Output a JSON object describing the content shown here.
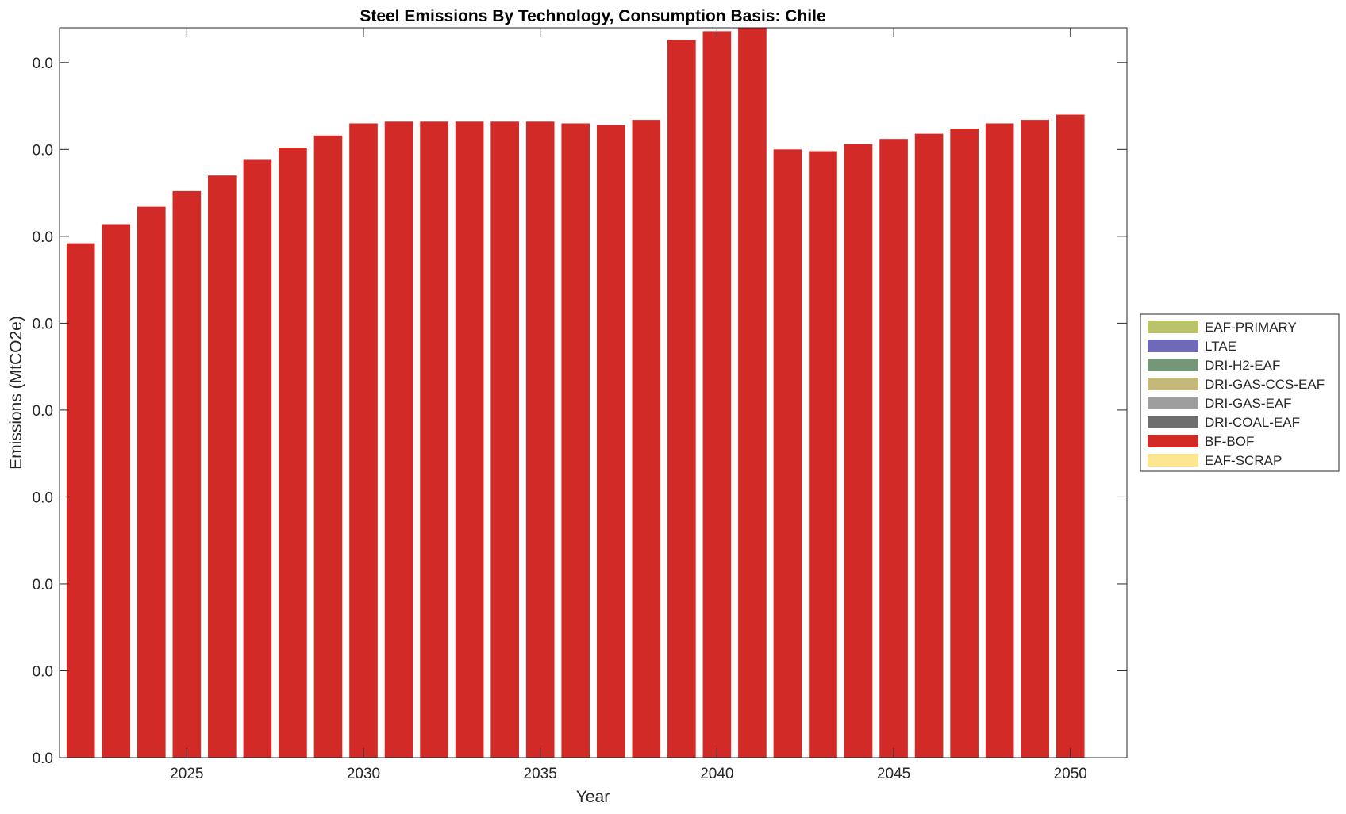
{
  "chart_data": {
    "type": "bar",
    "stacked": true,
    "title": "Steel Emissions By Technology, Consumption Basis: Chile",
    "xlabel": "Year",
    "ylabel": "Emissions (MtCO2e)",
    "x": [
      2022,
      2023,
      2024,
      2025,
      2026,
      2027,
      2028,
      2029,
      2030,
      2031,
      2032,
      2033,
      2034,
      2035,
      2036,
      2037,
      2038,
      2039,
      2040,
      2041,
      2042,
      2043,
      2044,
      2045,
      2046,
      2047,
      2048,
      2049,
      2050
    ],
    "xlim": [
      2021.4,
      2051.6
    ],
    "x_ticks": [
      2025,
      2030,
      2035,
      2040,
      2045,
      2050
    ],
    "ylim": [
      0,
      0.042
    ],
    "y_ticks": [
      0,
      0.005,
      0.01,
      0.015,
      0.02,
      0.025,
      0.03,
      0.035,
      0.04
    ],
    "y_tick_labels": [
      "0.0",
      "0.0",
      "0.0",
      "0.0",
      "0.0",
      "0.0",
      "0.0",
      "0.0",
      "0.0"
    ],
    "grid": false,
    "legend_position": "right",
    "series": [
      {
        "name": "EAF-PRIMARY",
        "color": "#b9c46a",
        "values": [
          0,
          0,
          0,
          0,
          0,
          0,
          0,
          0,
          0,
          0,
          0,
          0,
          0,
          0,
          0,
          0,
          0,
          0,
          0,
          0,
          0,
          0,
          0,
          0,
          0,
          0,
          0,
          0,
          0
        ]
      },
      {
        "name": "LTAE",
        "color": "#6f6ab8",
        "values": [
          0,
          0,
          0,
          0,
          0,
          0,
          0,
          0,
          0,
          0,
          0,
          0,
          0,
          0,
          0,
          0,
          0,
          0,
          0,
          0,
          0,
          0,
          0,
          0,
          0,
          0,
          0,
          0,
          0
        ]
      },
      {
        "name": "DRI-H2-EAF",
        "color": "#74977a",
        "values": [
          0,
          0,
          0,
          0,
          0,
          0,
          0,
          0,
          0,
          0,
          0,
          0,
          0,
          0,
          0,
          0,
          0,
          0,
          0,
          0,
          0,
          0,
          0,
          0,
          0,
          0,
          0,
          0,
          0
        ]
      },
      {
        "name": "DRI-GAS-CCS-EAF",
        "color": "#c2b97a",
        "values": [
          0,
          0,
          0,
          0,
          0,
          0,
          0,
          0,
          0,
          0,
          0,
          0,
          0,
          0,
          0,
          0,
          0,
          0,
          0,
          0,
          0,
          0,
          0,
          0,
          0,
          0,
          0,
          0,
          0
        ]
      },
      {
        "name": "DRI-GAS-EAF",
        "color": "#9e9e9e",
        "values": [
          0,
          0,
          0,
          0,
          0,
          0,
          0,
          0,
          0,
          0,
          0,
          0,
          0,
          0,
          0,
          0,
          0,
          0,
          0,
          0,
          0,
          0,
          0,
          0,
          0,
          0,
          0,
          0,
          0
        ]
      },
      {
        "name": "DRI-COAL-EAF",
        "color": "#6e6e6e",
        "values": [
          0,
          0,
          0,
          0,
          0,
          0,
          0,
          0,
          0,
          0,
          0,
          0,
          0,
          0,
          0,
          0,
          0,
          0,
          0,
          0,
          0,
          0,
          0,
          0,
          0,
          0,
          0,
          0,
          0
        ]
      },
      {
        "name": "BF-BOF",
        "color": "#d22a26",
        "values": [
          0.0296,
          0.0307,
          0.0317,
          0.0326,
          0.0335,
          0.0344,
          0.0351,
          0.0358,
          0.0365,
          0.0366,
          0.0366,
          0.0366,
          0.0366,
          0.0366,
          0.0365,
          0.0364,
          0.0367,
          0.0413,
          0.0418,
          0.0422,
          0.035,
          0.0349,
          0.0353,
          0.0356,
          0.0359,
          0.0362,
          0.0365,
          0.0367,
          0.037
        ]
      },
      {
        "name": "EAF-SCRAP",
        "color": "#fde68f",
        "values": [
          0,
          0,
          0,
          0,
          0,
          0,
          0,
          0,
          0,
          0,
          0,
          0,
          0,
          0,
          0,
          0,
          0,
          0,
          0,
          0,
          0,
          0,
          0,
          0,
          0,
          0,
          0,
          0,
          0
        ]
      }
    ]
  }
}
